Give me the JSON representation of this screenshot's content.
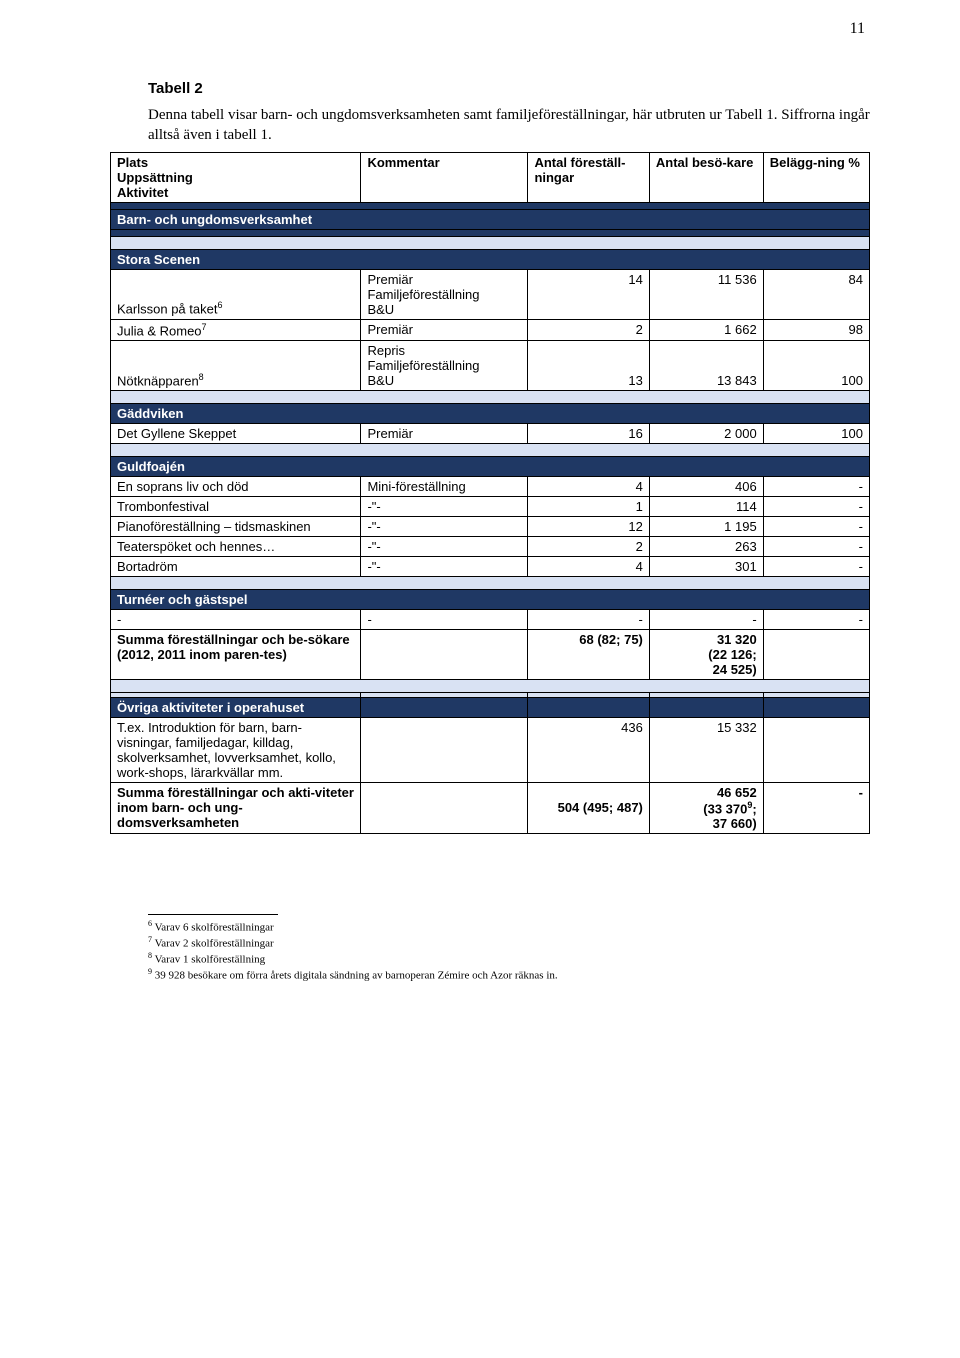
{
  "page_number": "11",
  "heading": "Tabell 2",
  "intro": "Denna tabell visar barn- och ungdomsverksamheten samt familjeföreställningar, här utbruten ur Tabell 1. Siffrorna ingår alltså även i tabell 1.",
  "header": {
    "c1": "Plats\nUppsättning\nAktivitet",
    "c2": "Kommentar",
    "c3": "Antal föreställ-ningar",
    "c4": "Antal besö-kare",
    "c5": "Belägg-ning %"
  },
  "sections": {
    "barn": "Barn- och ungdomsverksamhet",
    "stora": "Stora Scenen",
    "gadd": "Gäddviken",
    "guld": "Guldfoajén",
    "turn": "Turnéer och gästspel",
    "ovriga": "Övriga aktiviteter i operahuset"
  },
  "stora_rows": {
    "karlsson_label": "Karlsson på taket",
    "karlsson_sup": "6",
    "karlsson_comment": "Premiär\nFamiljeföreställning\nB&U",
    "karlsson_c3": "14",
    "karlsson_c4": "11 536",
    "karlsson_c5": "84",
    "julia_label": "Julia & Romeo",
    "julia_sup": "7",
    "julia_comment": "Premiär",
    "julia_c3": "2",
    "julia_c4": "1 662",
    "julia_c5": "98",
    "not_label": "Nötknäpparen",
    "not_sup": "8",
    "not_comment": "Repris\nFamiljeföreställning\nB&U",
    "not_c3": "13",
    "not_c4": "13 843",
    "not_c5": "100"
  },
  "gadd_rows": {
    "gyll_label": "Det Gyllene Skeppet",
    "gyll_comment": "Premiär",
    "gyll_c3": "16",
    "gyll_c4": "2 000",
    "gyll_c5": "100"
  },
  "guld_rows": [
    {
      "a": "En soprans liv och död",
      "b": "Mini-föreställning",
      "c": "4",
      "d": "406",
      "e": "-"
    },
    {
      "a": "Trombonfestival",
      "b": "-\"-",
      "c": "1",
      "d": "114",
      "e": "-"
    },
    {
      "a": "Pianoföreställning – tidsmaskinen",
      "b": "-\"-",
      "c": "12",
      "d": "1 195",
      "e": "-"
    },
    {
      "a": "Teaterspöket och hennes…",
      "b": "-\"-",
      "c": "2",
      "d": "263",
      "e": "-"
    },
    {
      "a": "Bortadröm",
      "b": "-\"-",
      "c": "4",
      "d": "301",
      "e": "-"
    }
  ],
  "turn_dash": {
    "a": "-",
    "b": "-",
    "c": "-",
    "d": "-",
    "e": "-"
  },
  "summa1": {
    "label": "Summa föreställningar och be-sökare (2012, 2011 inom paren-tes)",
    "c3": "68 (82; 75)",
    "c4": "31 320\n(22 126;\n24 525)"
  },
  "ovriga_rows": {
    "tex_label": "T.ex. Introduktion för barn, barn-visningar, familjedagar, killdag, skolverksamhet, lovverksamhet, kollo, work-shops, lärarkvällar mm.",
    "tex_c3": "436",
    "tex_c4": "15 332",
    "summa2_label": "Summa föreställningar och akti-viteter inom barn- och ung-domsverksamheten",
    "summa2_c3": "504 (495; 487)",
    "summa2_c4_a": "46 652",
    "summa2_c4_b": "(33 370",
    "summa2_c4_sup": "9",
    "summa2_c4_c": ";\n37 660)",
    "summa2_c5": "-"
  },
  "footnotes": {
    "f6": "Varav 6 skolföreställningar",
    "f7": "Varav 2 skolföreställningar",
    "f8": "Varav 1 skolföreställning",
    "f9": "39 928 besökare om förra årets digitala sändning av barnoperan Zémire och Azor räknas in."
  },
  "colors": {
    "band_bg": "#1f3864",
    "shade_bg": "#d9e2f3"
  }
}
